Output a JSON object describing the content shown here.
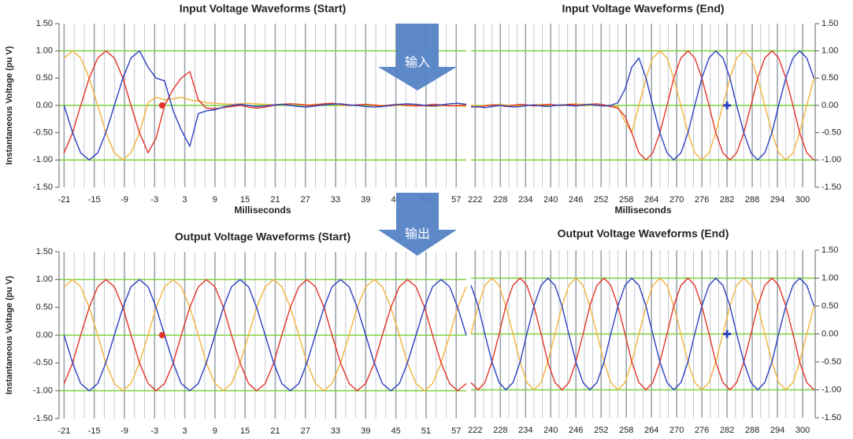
{
  "annotations": {
    "arrow_in": "输入",
    "arrow_out": "输出"
  },
  "chart_data": [
    {
      "type": "line",
      "title": "Input Voltage Waveforms (Start)",
      "xlabel": "Milliseconds",
      "ylabel": "Instantaneous Voltage (pu V)",
      "yaxis_side": "left",
      "x": [
        -21,
        -19.3,
        -17.7,
        -16,
        -14.3,
        -12.7,
        -11,
        -9.3,
        -7.7,
        -6,
        -4.3,
        -2.7,
        -1,
        0.7,
        2.3,
        4,
        5.7,
        7.3,
        9,
        10.7,
        12.3,
        14,
        15.7,
        17.3,
        19,
        20.7,
        22.3,
        24,
        25.7,
        27.3,
        29,
        30.7,
        32.3,
        34,
        35.7,
        37.3,
        39,
        40.7,
        42.3,
        44,
        45.7,
        47.3,
        49,
        50.7,
        52.3,
        54,
        55.7,
        57.3,
        59
      ],
      "series": [
        {
          "color": "#f2b33d",
          "values": [
            0.87,
            1,
            0.87,
            0.5,
            0,
            -0.5,
            -0.87,
            -1,
            -0.87,
            -0.5,
            0.05,
            0.15,
            0.1,
            0.12,
            0.15,
            0.1,
            0.08,
            0.05,
            0.04,
            0.03,
            0.02,
            0.03,
            0.04,
            0.03,
            0.02,
            0.01,
            0.02,
            0.03,
            0.02,
            0.01,
            0.02,
            0.03,
            0.02,
            0.01,
            0,
            0.01,
            0.02,
            0.01,
            0,
            -0.01,
            0,
            0.01,
            0,
            -0.01,
            -0.02,
            -0.01,
            0,
            -0.01,
            -0.02
          ]
        },
        {
          "color": "#e3342b",
          "values": [
            -0.87,
            -0.5,
            0,
            0.5,
            0.87,
            1,
            0.87,
            0.5,
            0,
            -0.5,
            -0.87,
            -0.6,
            0,
            0.3,
            0.5,
            0.62,
            0.1,
            -0.05,
            -0.06,
            -0.04,
            -0.02,
            0,
            -0.03,
            -0.05,
            -0.03,
            0,
            0.02,
            0.03,
            0.02,
            0,
            0.01,
            0.03,
            0.04,
            0.02,
            0,
            0.01,
            0.02,
            0,
            -0.01,
            0.01,
            0.02,
            0,
            -0.01,
            0,
            0.02,
            0.01,
            -0.01,
            0,
            0.01
          ]
        },
        {
          "color": "#2b3fbf",
          "values": [
            0,
            -0.5,
            -0.87,
            -1,
            -0.87,
            -0.5,
            0,
            0.5,
            0.87,
            1,
            0.7,
            0.5,
            0.45,
            -0.1,
            -0.45,
            -0.75,
            -0.15,
            -0.1,
            -0.08,
            -0.03,
            0,
            0.02,
            0,
            -0.02,
            -0.01,
            0.01,
            0.02,
            0,
            -0.02,
            -0.03,
            -0.01,
            0.01,
            0.02,
            0.03,
            0.01,
            0,
            -0.02,
            -0.03,
            -0.02,
            0,
            0.02,
            0.03,
            0.02,
            0,
            -0.01,
            0.01,
            0.03,
            0.04,
            0.02
          ]
        }
      ],
      "markers": [
        {
          "x": -1.5,
          "y": 0,
          "color": "#e3342b",
          "shape": "dot"
        }
      ],
      "xlim": [
        -22,
        59
      ],
      "xticks": [
        -21,
        -15,
        -9,
        -3,
        3,
        9,
        15,
        21,
        27,
        33,
        39,
        45,
        51,
        57
      ],
      "ylim": [
        -1.5,
        1.5
      ],
      "yticks": [
        {
          "value": -1.5,
          "label": "-1.50"
        },
        {
          "value": -1,
          "label": "-1.00"
        },
        {
          "value": -0.5,
          "label": "-0.50"
        },
        {
          "value": 0,
          "label": "0.00"
        },
        {
          "value": 0.5,
          "label": "0.50"
        },
        {
          "value": 1,
          "label": "1.00"
        },
        {
          "value": 1.5,
          "label": "1.50"
        }
      ],
      "hlines": [
        1,
        0,
        -1
      ],
      "hline_color": "#7fd13b",
      "grid_color": "#9aa4ad"
    },
    {
      "type": "line",
      "title": "Input Voltage Waveforms (End)",
      "xlabel": "Milliseconds",
      "yaxis_side": "right",
      "x": [
        221,
        222.7,
        224.3,
        226,
        227.7,
        229.3,
        231,
        232.7,
        234.3,
        236,
        237.7,
        239.3,
        241,
        242.7,
        244.3,
        246,
        247.7,
        249.3,
        251,
        252.7,
        254.3,
        256,
        257.7,
        259.3,
        261,
        262.7,
        264.3,
        266,
        267.7,
        269.3,
        271,
        272.7,
        274.3,
        276,
        277.7,
        279.3,
        281,
        282.7,
        284.3,
        286,
        287.7,
        289.3,
        291,
        292.7,
        294.3,
        296,
        297.7,
        299.3,
        301,
        302.7
      ],
      "series": [
        {
          "color": "#f2b33d",
          "values": [
            0,
            -0.01,
            0,
            0.01,
            0.02,
            0.01,
            0,
            -0.01,
            0,
            0.01,
            0.02,
            0.01,
            0,
            0.01,
            0.02,
            0.03,
            0.02,
            0.01,
            0,
            -0.01,
            -0.02,
            -0.02,
            -0.3,
            -0.5,
            0,
            0.5,
            0.87,
            1,
            0.87,
            0.5,
            0,
            -0.5,
            -0.87,
            -1,
            -0.87,
            -0.5,
            0,
            0.5,
            0.87,
            1,
            0.87,
            0.5,
            0,
            -0.5,
            -0.87,
            -1,
            -0.87,
            -0.5,
            0,
            0.5
          ]
        },
        {
          "color": "#e3342b",
          "values": [
            -0.02,
            -0.03,
            -0.01,
            0.01,
            0,
            -0.02,
            0,
            0.02,
            0.01,
            -0.01,
            0,
            0.02,
            0.01,
            0,
            0.02,
            0.01,
            0,
            0.02,
            0.03,
            0.01,
            -0.02,
            -0.05,
            -0.2,
            -0.5,
            -0.87,
            -1,
            -0.87,
            -0.5,
            0,
            0.5,
            0.87,
            1,
            0.87,
            0.5,
            0,
            -0.5,
            -0.87,
            -1,
            -0.87,
            -0.5,
            0,
            0.5,
            0.87,
            1,
            0.87,
            0.5,
            0,
            -0.5,
            -0.87,
            -1
          ]
        },
        {
          "color": "#2b3fbf",
          "values": [
            -0.03,
            -0.02,
            -0.04,
            -0.02,
            0,
            -0.01,
            -0.03,
            -0.02,
            0,
            0.01,
            -0.01,
            -0.02,
            0,
            0.01,
            0,
            -0.01,
            0.01,
            0.02,
            0,
            -0.01,
            0,
            0.05,
            0.3,
            0.7,
            0.87,
            0.5,
            0,
            -0.5,
            -0.87,
            -1,
            -0.87,
            -0.5,
            0,
            0.5,
            0.87,
            1,
            0.87,
            0.5,
            0,
            -0.5,
            -0.87,
            -1,
            -0.87,
            -0.5,
            0,
            0.5,
            0.87,
            1,
            0.87,
            0.5
          ]
        }
      ],
      "markers": [
        {
          "x": 282,
          "y": 0,
          "color": "#2b3fbf",
          "shape": "plus"
        }
      ],
      "xlim": [
        221,
        303
      ],
      "xticks": [
        222,
        228,
        234,
        240,
        246,
        252,
        258,
        264,
        270,
        276,
        282,
        288,
        294,
        300
      ],
      "ylim": [
        -1.5,
        1.5
      ],
      "yticks": [
        {
          "value": -1.5,
          "label": "-1.50"
        },
        {
          "value": -1,
          "label": "-1.00"
        },
        {
          "value": -0.5,
          "label": "-0.50"
        },
        {
          "value": 0,
          "label": "0.00"
        },
        {
          "value": 0.5,
          "label": "0.50"
        },
        {
          "value": 1,
          "label": "1.00"
        },
        {
          "value": 1.5,
          "label": "1.50"
        }
      ],
      "hlines": [
        1,
        0,
        -1
      ],
      "hline_color": "#7fd13b",
      "grid_color": "#9aa4ad"
    },
    {
      "type": "line",
      "title": "Output Voltage Waveforms (Start)",
      "ylabel": "Instantaneous Voltage (pu V)",
      "yaxis_side": "left",
      "x": [
        -21,
        -19.3,
        -17.7,
        -16,
        -14.3,
        -12.7,
        -11,
        -9.3,
        -7.7,
        -6,
        -4.3,
        -2.7,
        -1,
        0.7,
        2.3,
        4,
        5.7,
        7.3,
        9,
        10.7,
        12.3,
        14,
        15.7,
        17.3,
        19,
        20.7,
        22.3,
        24,
        25.7,
        27.3,
        29,
        30.7,
        32.3,
        34,
        35.7,
        37.3,
        39,
        40.7,
        42.3,
        44,
        45.7,
        47.3,
        49,
        50.7,
        52.3,
        54,
        55.7,
        57.3,
        59
      ],
      "series": [
        {
          "color": "#f2b33d",
          "values": [
            0.87,
            1,
            0.87,
            0.5,
            0,
            -0.5,
            -0.87,
            -1,
            -0.87,
            -0.5,
            0,
            0.5,
            0.87,
            1,
            0.87,
            0.5,
            0,
            -0.5,
            -0.87,
            -1,
            -0.87,
            -0.5,
            0,
            0.5,
            0.87,
            1,
            0.87,
            0.5,
            0,
            -0.5,
            -0.87,
            -1,
            -0.87,
            -0.5,
            0,
            0.5,
            0.87,
            1,
            0.87,
            0.5,
            0,
            -0.5,
            -0.87,
            -1,
            -0.87,
            -0.5,
            0,
            0.5,
            0.87
          ]
        },
        {
          "color": "#e3342b",
          "values": [
            -0.87,
            -0.5,
            0,
            0.5,
            0.87,
            1,
            0.87,
            0.5,
            0,
            -0.5,
            -0.87,
            -1,
            -0.87,
            -0.5,
            0,
            0.5,
            0.87,
            1,
            0.87,
            0.5,
            0,
            -0.5,
            -0.87,
            -1,
            -0.87,
            -0.5,
            0,
            0.5,
            0.87,
            1,
            0.87,
            0.5,
            0,
            -0.5,
            -0.87,
            -1,
            -0.87,
            -0.5,
            0,
            0.5,
            0.87,
            1,
            0.87,
            0.5,
            0,
            -0.5,
            -0.87,
            -1,
            -0.87
          ]
        },
        {
          "color": "#2b3fbf",
          "values": [
            0,
            -0.5,
            -0.87,
            -1,
            -0.87,
            -0.5,
            0,
            0.5,
            0.87,
            1,
            0.87,
            0.5,
            0,
            -0.5,
            -0.87,
            -1,
            -0.87,
            -0.5,
            0,
            0.5,
            0.87,
            1,
            0.87,
            0.5,
            0,
            -0.5,
            -0.87,
            -1,
            -0.87,
            -0.5,
            0,
            0.5,
            0.87,
            1,
            0.87,
            0.5,
            0,
            -0.5,
            -0.87,
            -1,
            -0.87,
            -0.5,
            0,
            0.5,
            0.87,
            1,
            0.87,
            0.5,
            0
          ]
        }
      ],
      "markers": [
        {
          "x": -1.5,
          "y": 0,
          "color": "#e3342b",
          "shape": "dot"
        }
      ],
      "xlim": [
        -22,
        59
      ],
      "xticks": [
        -21,
        -15,
        -9,
        -3,
        3,
        9,
        15,
        21,
        27,
        33,
        39,
        45,
        51,
        57
      ],
      "ylim": [
        -1.5,
        1.5
      ],
      "yticks": [
        {
          "value": -1.5,
          "label": "-1.50"
        },
        {
          "value": -1,
          "label": "-1.00"
        },
        {
          "value": -0.5,
          "label": "-0.50"
        },
        {
          "value": 0,
          "label": "0.00"
        },
        {
          "value": 0.5,
          "label": "0.50"
        },
        {
          "value": 1,
          "label": "1.00"
        },
        {
          "value": 1.5,
          "label": "1.50"
        }
      ],
      "hlines": [
        1,
        0,
        -1
      ],
      "hline_color": "#7fd13b",
      "grid_color": "#9aa4ad"
    },
    {
      "type": "line",
      "title": "Output Voltage Waveforms (End)",
      "yaxis_side": "right",
      "x": [
        221,
        222.7,
        224.3,
        226,
        227.7,
        229.3,
        231,
        232.7,
        234.3,
        236,
        237.7,
        239.3,
        241,
        242.7,
        244.3,
        246,
        247.7,
        249.3,
        251,
        252.7,
        254.3,
        256,
        257.7,
        259.3,
        261,
        262.7,
        264.3,
        266,
        267.7,
        269.3,
        271,
        272.7,
        274.3,
        276,
        277.7,
        279.3,
        281,
        282.7,
        284.3,
        286,
        287.7,
        289.3,
        291,
        292.7,
        294.3,
        296,
        297.7,
        299.3,
        301,
        302.7
      ],
      "series": [
        {
          "color": "#f2b33d",
          "values": [
            0,
            0.5,
            0.87,
            1,
            0.87,
            0.5,
            0,
            -0.5,
            -0.87,
            -1,
            -0.87,
            -0.5,
            0,
            0.5,
            0.87,
            1,
            0.87,
            0.5,
            0,
            -0.5,
            -0.87,
            -1,
            -0.87,
            -0.5,
            0,
            0.5,
            0.87,
            1,
            0.87,
            0.5,
            0,
            -0.5,
            -0.87,
            -1,
            -0.87,
            -0.5,
            0,
            0.5,
            0.87,
            1,
            0.87,
            0.5,
            0,
            -0.5,
            -0.87,
            -1,
            -0.87,
            -0.5,
            0,
            0.5
          ]
        },
        {
          "color": "#e3342b",
          "values": [
            -0.87,
            -1,
            -0.87,
            -0.5,
            0,
            0.5,
            0.87,
            1,
            0.87,
            0.5,
            0,
            -0.5,
            -0.87,
            -1,
            -0.87,
            -0.5,
            0,
            0.5,
            0.87,
            1,
            0.87,
            0.5,
            0,
            -0.5,
            -0.87,
            -1,
            -0.87,
            -0.5,
            0,
            0.5,
            0.87,
            1,
            0.87,
            0.5,
            0,
            -0.5,
            -0.87,
            -1,
            -0.87,
            -0.5,
            0,
            0.5,
            0.87,
            1,
            0.87,
            0.5,
            0,
            -0.5,
            -0.87,
            -1
          ]
        },
        {
          "color": "#2b3fbf",
          "values": [
            0.87,
            0.5,
            0,
            -0.5,
            -0.87,
            -1,
            -0.87,
            -0.5,
            0,
            0.5,
            0.87,
            1,
            0.87,
            0.5,
            0,
            -0.5,
            -0.87,
            -1,
            -0.87,
            -0.5,
            0,
            0.5,
            0.87,
            1,
            0.87,
            0.5,
            0,
            -0.5,
            -0.87,
            -1,
            -0.87,
            -0.5,
            0,
            0.5,
            0.87,
            1,
            0.87,
            0.5,
            0,
            -0.5,
            -0.87,
            -1,
            -0.87,
            -0.5,
            0,
            0.5,
            0.87,
            1,
            0.87,
            0.5
          ]
        }
      ],
      "markers": [
        {
          "x": 282,
          "y": 0,
          "color": "#2b3fbf",
          "shape": "plus"
        }
      ],
      "xlim": [
        221,
        303
      ],
      "xticks": [
        222,
        228,
        234,
        240,
        246,
        252,
        258,
        264,
        270,
        276,
        282,
        288,
        294,
        300
      ],
      "ylim": [
        -1.5,
        1.5
      ],
      "yticks": [
        {
          "value": -1.5,
          "label": "-1.50"
        },
        {
          "value": -1,
          "label": "-1.00"
        },
        {
          "value": -0.5,
          "label": "-0.50"
        },
        {
          "value": 0,
          "label": "0.00"
        },
        {
          "value": 0.5,
          "label": "0.50"
        },
        {
          "value": 1,
          "label": "1.00"
        },
        {
          "value": 1.5,
          "label": "1.50"
        }
      ],
      "hlines": [
        1,
        0,
        -1
      ],
      "hline_color": "#7fd13b",
      "grid_color": "#9aa4ad"
    }
  ]
}
